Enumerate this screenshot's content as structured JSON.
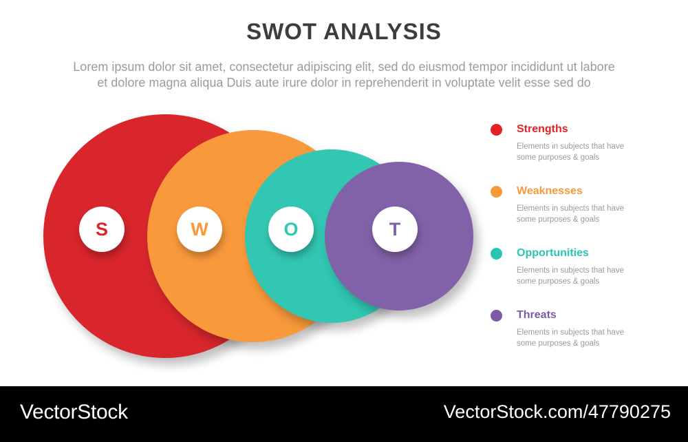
{
  "header": {
    "title": "SWOT ANALYSIS",
    "title_color": "#3d3d40",
    "subtitle_line1": "Lorem ipsum dolor sit amet, consectetur adipiscing elit, sed do eiusmod tempor incididunt ut labore",
    "subtitle_line2": "et dolore magna aliqua Duis aute irure dolor in reprehenderit in voluptate velit esse sed do",
    "subtitle_color": "#9b9b9b"
  },
  "diagram": {
    "circles": [
      {
        "letter": "S",
        "name": "strengths",
        "color": "#d8262c"
      },
      {
        "letter": "W",
        "name": "weaknesses",
        "color": "#f8993b"
      },
      {
        "letter": "O",
        "name": "opportunities",
        "color": "#31c7b2"
      },
      {
        "letter": "T",
        "name": "threats",
        "color": "#8161a8"
      }
    ]
  },
  "legend": {
    "desc_color": "#9a9a9a",
    "items": [
      {
        "label": "Strengths",
        "color": "#e32126",
        "desc_line1": "Elements in subjects that have",
        "desc_line2": "some purposes & goals"
      },
      {
        "label": "Weaknesses",
        "color": "#f8993b",
        "desc_line1": "Elements in subjects that have",
        "desc_line2": "some purposes & goals"
      },
      {
        "label": "Opportunities",
        "color": "#2cc5b1",
        "desc_line1": "Elements in subjects that have",
        "desc_line2": "some purposes & goals"
      },
      {
        "label": "Threats",
        "color": "#7e5aa6",
        "desc_line1": "Elements in subjects that have",
        "desc_line2": "some purposes & goals"
      }
    ]
  },
  "footer": {
    "brand": "VectorStock",
    "watermark": "VectorStock.com/47790275",
    "background": "#000000",
    "text_color": "#ffffff"
  }
}
